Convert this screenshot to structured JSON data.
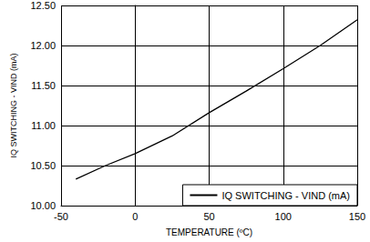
{
  "chart_data": {
    "type": "line",
    "xlabel": "TEMPERATURE (ºC)",
    "ylabel": "IQ SWITCHING - VIND (mA)",
    "x": [
      -40,
      -20,
      0,
      25,
      50,
      75,
      100,
      125,
      150
    ],
    "series": [
      {
        "name": "IQ SWITCHING - VIND (mA)",
        "color": "#000000",
        "values": [
          10.33,
          10.5,
          10.65,
          10.87,
          11.16,
          11.43,
          11.71,
          12.0,
          12.32
        ]
      }
    ],
    "xlim": [
      -50,
      150
    ],
    "xticks": [
      -50,
      0,
      50,
      100,
      150
    ],
    "ylim": [
      10,
      12.5
    ],
    "yticks": [
      {
        "value": 10,
        "label": "10.00"
      },
      {
        "value": 10.5,
        "label": "10.50"
      },
      {
        "value": 11,
        "label": "11.00"
      },
      {
        "value": 11.5,
        "label": "11.50"
      },
      {
        "value": 12,
        "label": "12.00"
      },
      {
        "value": 12.5,
        "label": "12.50"
      }
    ],
    "grid": true,
    "legend": "lower right"
  }
}
